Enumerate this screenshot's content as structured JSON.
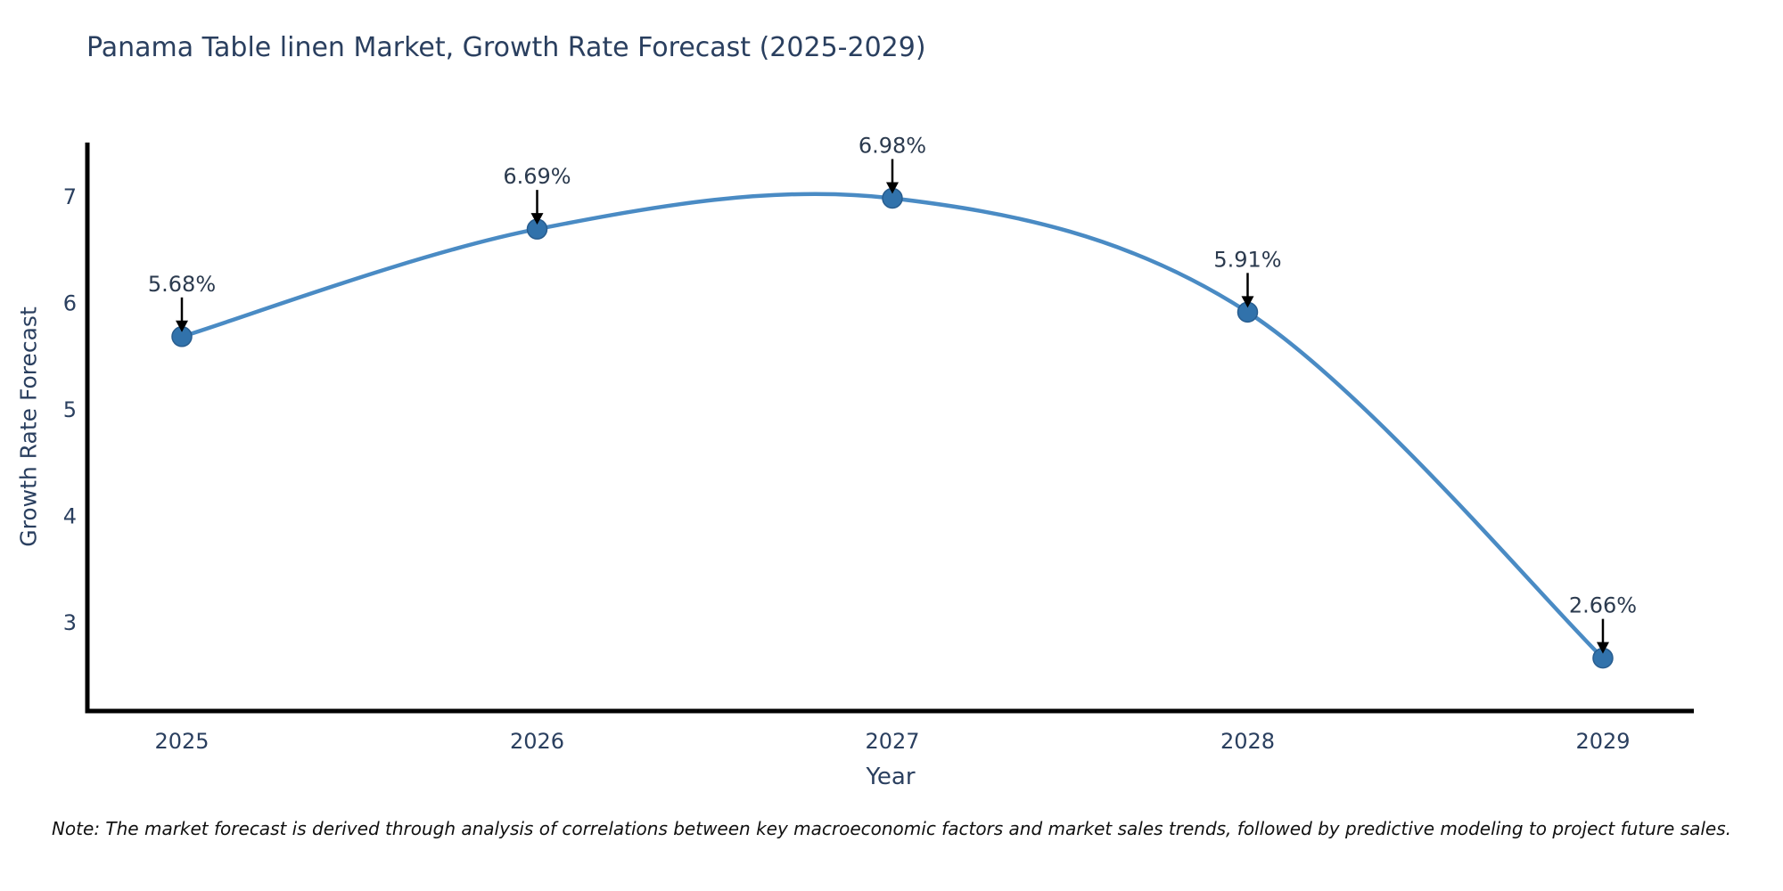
{
  "title": "Panama Table linen Market, Growth Rate Forecast (2025-2029)",
  "note": "Note: The market forecast is derived through analysis of correlations between key macroeconomic factors and market sales trends, followed by predictive modeling to project future sales.",
  "chart_data": {
    "type": "line",
    "title": "Panama Table linen Market, Growth Rate Forecast (2025-2029)",
    "xlabel": "Year",
    "ylabel": "Growth Rate Forecast",
    "categories": [
      2025,
      2026,
      2027,
      2028,
      2029
    ],
    "values": [
      5.68,
      6.69,
      6.98,
      5.91,
      2.66
    ],
    "point_labels": [
      "5.68%",
      "6.69%",
      "6.98%",
      "5.91%",
      "2.66%"
    ],
    "yticks": [
      3,
      4,
      5,
      6,
      7
    ],
    "ylim": [
      2.163,
      7.503
    ],
    "xlim": [
      2024.734,
      2029.256
    ],
    "grid": false,
    "legend_position": "none",
    "line_shape": "spline",
    "colors": {
      "line": "#4a8bc4",
      "marker": "#3172ab",
      "marker_edge": "#285d8f",
      "axis_spine": "#000000",
      "tick_label": "#2a3f5f",
      "annotation_text": "#2b3a4e",
      "annotation_arrow": "#000000",
      "title": "#2a3f5f",
      "background": "#ffffff"
    }
  }
}
